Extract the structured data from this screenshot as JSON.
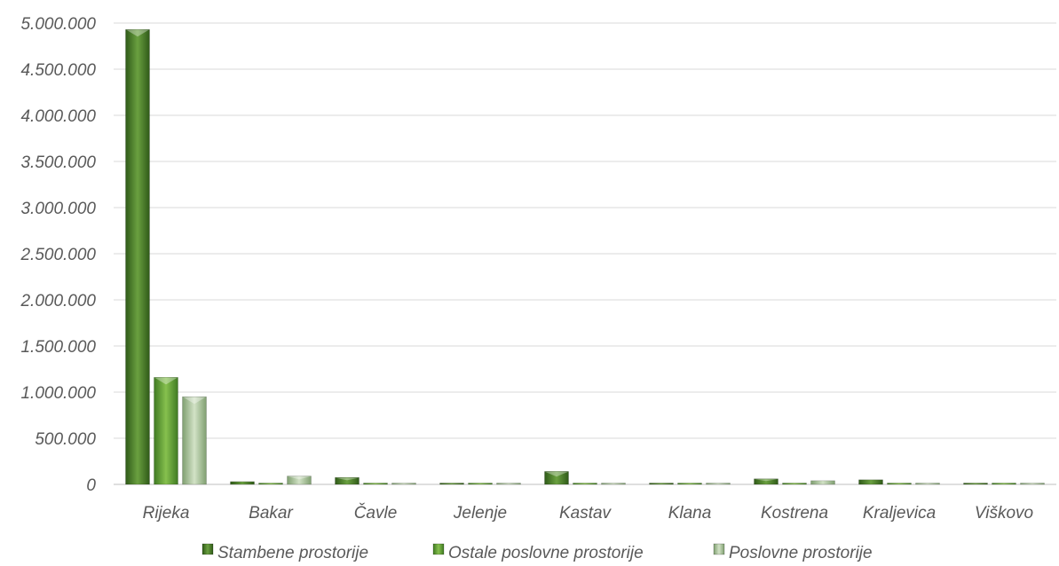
{
  "chart_data": {
    "type": "bar",
    "categories": [
      "Rijeka",
      "Bakar",
      "Čavle",
      "Jelenje",
      "Kastav",
      "Klana",
      "Kostrena",
      "Kraljevica",
      "Viškovo"
    ],
    "series": [
      {
        "name": "Stambene prostorije",
        "color": "#4f7f2e",
        "values": [
          4930000,
          30000,
          75000,
          3000,
          140000,
          3000,
          60000,
          50000,
          3000
        ]
      },
      {
        "name": "Ostale poslovne prostorije",
        "color": "#5f9a34",
        "values": [
          1160000,
          3000,
          3000,
          3000,
          3000,
          3000,
          3000,
          3000,
          3000
        ]
      },
      {
        "name": "Poslovne prostorije",
        "color": "#a9c49a",
        "values": [
          950000,
          90000,
          3000,
          3000,
          3000,
          3000,
          40000,
          3000,
          3000
        ]
      }
    ],
    "ylim": [
      0,
      5000000
    ],
    "yticks": [
      "0",
      "500.000",
      "1.000.000",
      "1.500.000",
      "2.000.000",
      "2.500.000",
      "3.000.000",
      "3.500.000",
      "4.000.000",
      "4.500.000",
      "5.000.000"
    ],
    "ytick_values": [
      0,
      500000,
      1000000,
      1500000,
      2000000,
      2500000,
      3000000,
      3500000,
      4000000,
      4500000,
      5000000
    ],
    "grid": true,
    "legend_position": "bottom"
  }
}
